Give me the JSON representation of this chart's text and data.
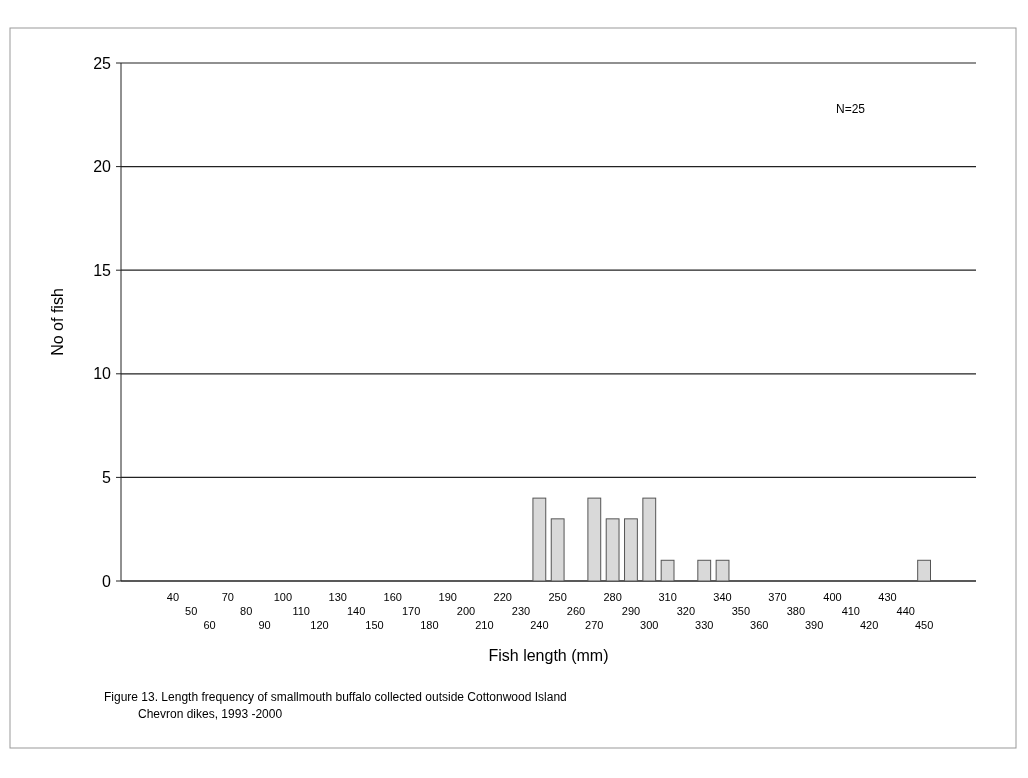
{
  "chart_data": {
    "type": "bar",
    "xlabel": "Fish length (mm)",
    "ylabel": "No  of fish",
    "categories": [
      "40",
      "50",
      "60",
      "70",
      "80",
      "90",
      "100",
      "110",
      "120",
      "130",
      "140",
      "150",
      "160",
      "170",
      "180",
      "190",
      "200",
      "210",
      "220",
      "230",
      "240",
      "250",
      "260",
      "270",
      "280",
      "290",
      "300",
      "310",
      "320",
      "330",
      "340",
      "350",
      "360",
      "370",
      "380",
      "390",
      "400",
      "410",
      "420",
      "430",
      "440",
      "450"
    ],
    "values": [
      0,
      0,
      0,
      0,
      0,
      0,
      0,
      0,
      0,
      0,
      0,
      0,
      0,
      0,
      0,
      0,
      0,
      0,
      0,
      0,
      4,
      3,
      0,
      4,
      3,
      3,
      4,
      1,
      0,
      1,
      1,
      0,
      0,
      0,
      0,
      0,
      0,
      0,
      0,
      0,
      0,
      1
    ],
    "color": "#d9d9d9",
    "ylim": [
      0,
      25
    ],
    "yticks": [
      0,
      5,
      10,
      15,
      20,
      25
    ],
    "grid": "y",
    "annotations": [
      "N=25",
      "Figure 13.  Length frequency of smallmouth buffalo collected outside Cottonwood Island Chevron dikes, 1993 -2000"
    ]
  }
}
